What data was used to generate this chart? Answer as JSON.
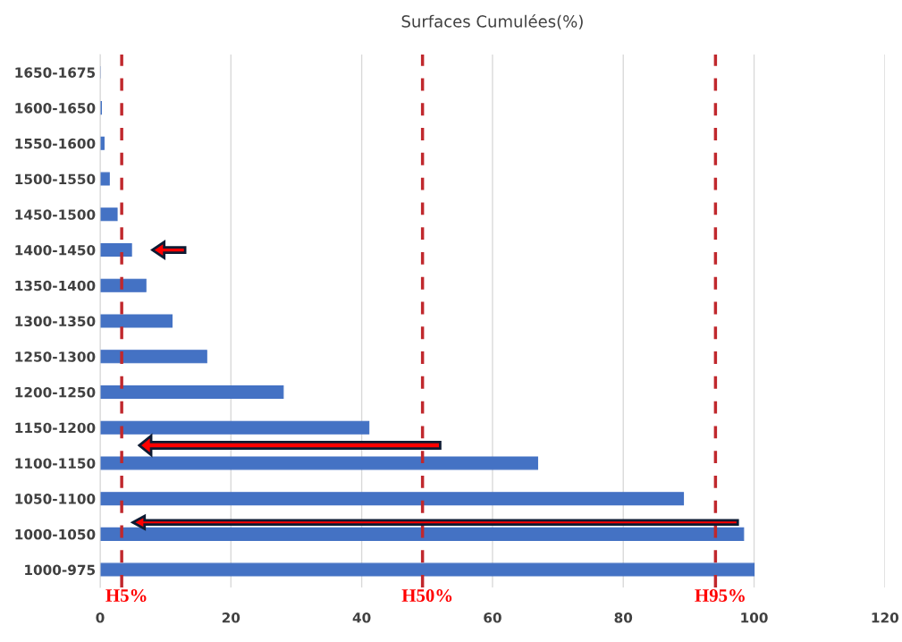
{
  "chart_data": {
    "type": "bar",
    "orientation": "horizontal",
    "title": "Surfaces Cumulées(%)",
    "categories": [
      "1650-1675",
      "1600-1650",
      "1550-1600",
      "1500-1550",
      "1450-1500",
      "1400-1450",
      "1350-1400",
      "1300-1350",
      "1250-1300",
      "1200-1250",
      "1150-1200",
      "1100-1150",
      "1050-1100",
      "1000-1050",
      "1000-975"
    ],
    "values": [
      0,
      0.2,
      0.6,
      1.4,
      2.6,
      4.8,
      7.0,
      11.0,
      16.3,
      28.0,
      41.1,
      66.9,
      89.2,
      98.4,
      100
    ],
    "color": "#4472c4",
    "xlim": [
      0,
      120
    ],
    "xticks": [
      0,
      20,
      40,
      60,
      80,
      100,
      120
    ],
    "grid": "x",
    "ref_lines": [
      {
        "axis": "x",
        "value": 3.3,
        "label": "H5%",
        "color": "#c0282d",
        "line_style": "dashed"
      },
      {
        "axis": "x",
        "value": 49.3,
        "label": "H50%",
        "color": "#c0282d",
        "line_style": "dashed"
      },
      {
        "axis": "x",
        "value": 94.1,
        "label": "H95%",
        "color": "#c0282d",
        "line_style": "dashed"
      }
    ]
  }
}
